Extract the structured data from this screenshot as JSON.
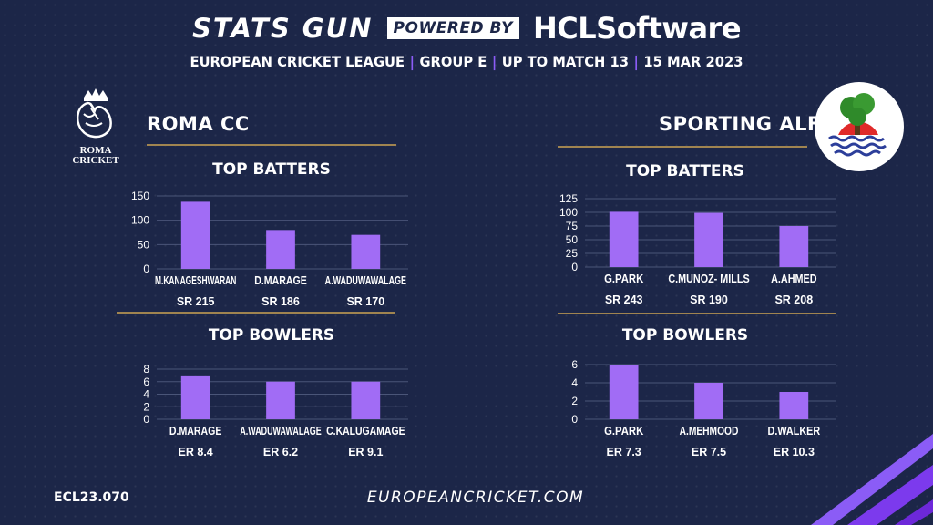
{
  "header": {
    "brand": "STATS GUN",
    "powered_by": "POWERED BY",
    "sponsor": "HCLSoftware",
    "league": "EUROPEAN CRICKET LEAGUE",
    "group": "GROUP  E",
    "match": "UP TO MATCH  13",
    "date": "15 MAR 2023"
  },
  "teams": {
    "left": {
      "name": "ROMA CC",
      "logo_text": "ROMA CRICKET",
      "batters_title": "TOP BATTERS",
      "bowlers_title": "TOP BOWLERS"
    },
    "right": {
      "name": "SPORTING ALFAS",
      "batters_title": "TOP BATTERS",
      "bowlers_title": "TOP BOWLERS"
    }
  },
  "footer": {
    "code": "ECL23.070",
    "website": "EUROPEANCRICKET.COM"
  },
  "colors": {
    "background": "#1c2648",
    "bar": "#a16cf5",
    "accent_line": "#a08450",
    "separator": "#8b5cf6"
  },
  "chart_data": [
    {
      "id": "roma-batters",
      "type": "bar",
      "title": "TOP BATTERS",
      "categories": [
        "M.KANAGESHWARAN",
        "D.MARAGE",
        "A.WADUWAWALAGE"
      ],
      "values": [
        138,
        80,
        70
      ],
      "sublabels": [
        "SR 215",
        "SR 186",
        "SR 170"
      ],
      "yticks": [
        0,
        50,
        100,
        150
      ],
      "ylim": [
        0,
        150
      ],
      "grid": true
    },
    {
      "id": "roma-bowlers",
      "type": "bar",
      "title": "TOP BOWLERS",
      "categories": [
        "D.MARAGE",
        "A.WADUWAWALAGE",
        "C.KALUGAMAGE"
      ],
      "values": [
        7,
        6,
        6
      ],
      "sublabels": [
        "ER 8.4",
        "ER 6.2",
        "ER 9.1"
      ],
      "yticks": [
        0,
        2,
        4,
        6,
        8
      ],
      "ylim": [
        0,
        8
      ],
      "grid": true
    },
    {
      "id": "alfas-batters",
      "type": "bar",
      "title": "TOP BATTERS",
      "categories": [
        "G.PARK",
        "C.MUNOZ- MILLS",
        "A.AHMED"
      ],
      "values": [
        101,
        99,
        75
      ],
      "sublabels": [
        "SR 243",
        "SR 190",
        "SR 208"
      ],
      "yticks": [
        0,
        25,
        50,
        75,
        100,
        125
      ],
      "ylim": [
        0,
        125
      ],
      "grid": true
    },
    {
      "id": "alfas-bowlers",
      "type": "bar",
      "title": "TOP BOWLERS",
      "categories": [
        "G.PARK",
        "A.MEHMOOD",
        "D.WALKER"
      ],
      "values": [
        6,
        4,
        3
      ],
      "sublabels": [
        "ER  7.3",
        "ER 7.5",
        "ER 10.3"
      ],
      "yticks": [
        0,
        2,
        4,
        6
      ],
      "ylim": [
        0,
        6.5
      ],
      "grid": true
    }
  ]
}
